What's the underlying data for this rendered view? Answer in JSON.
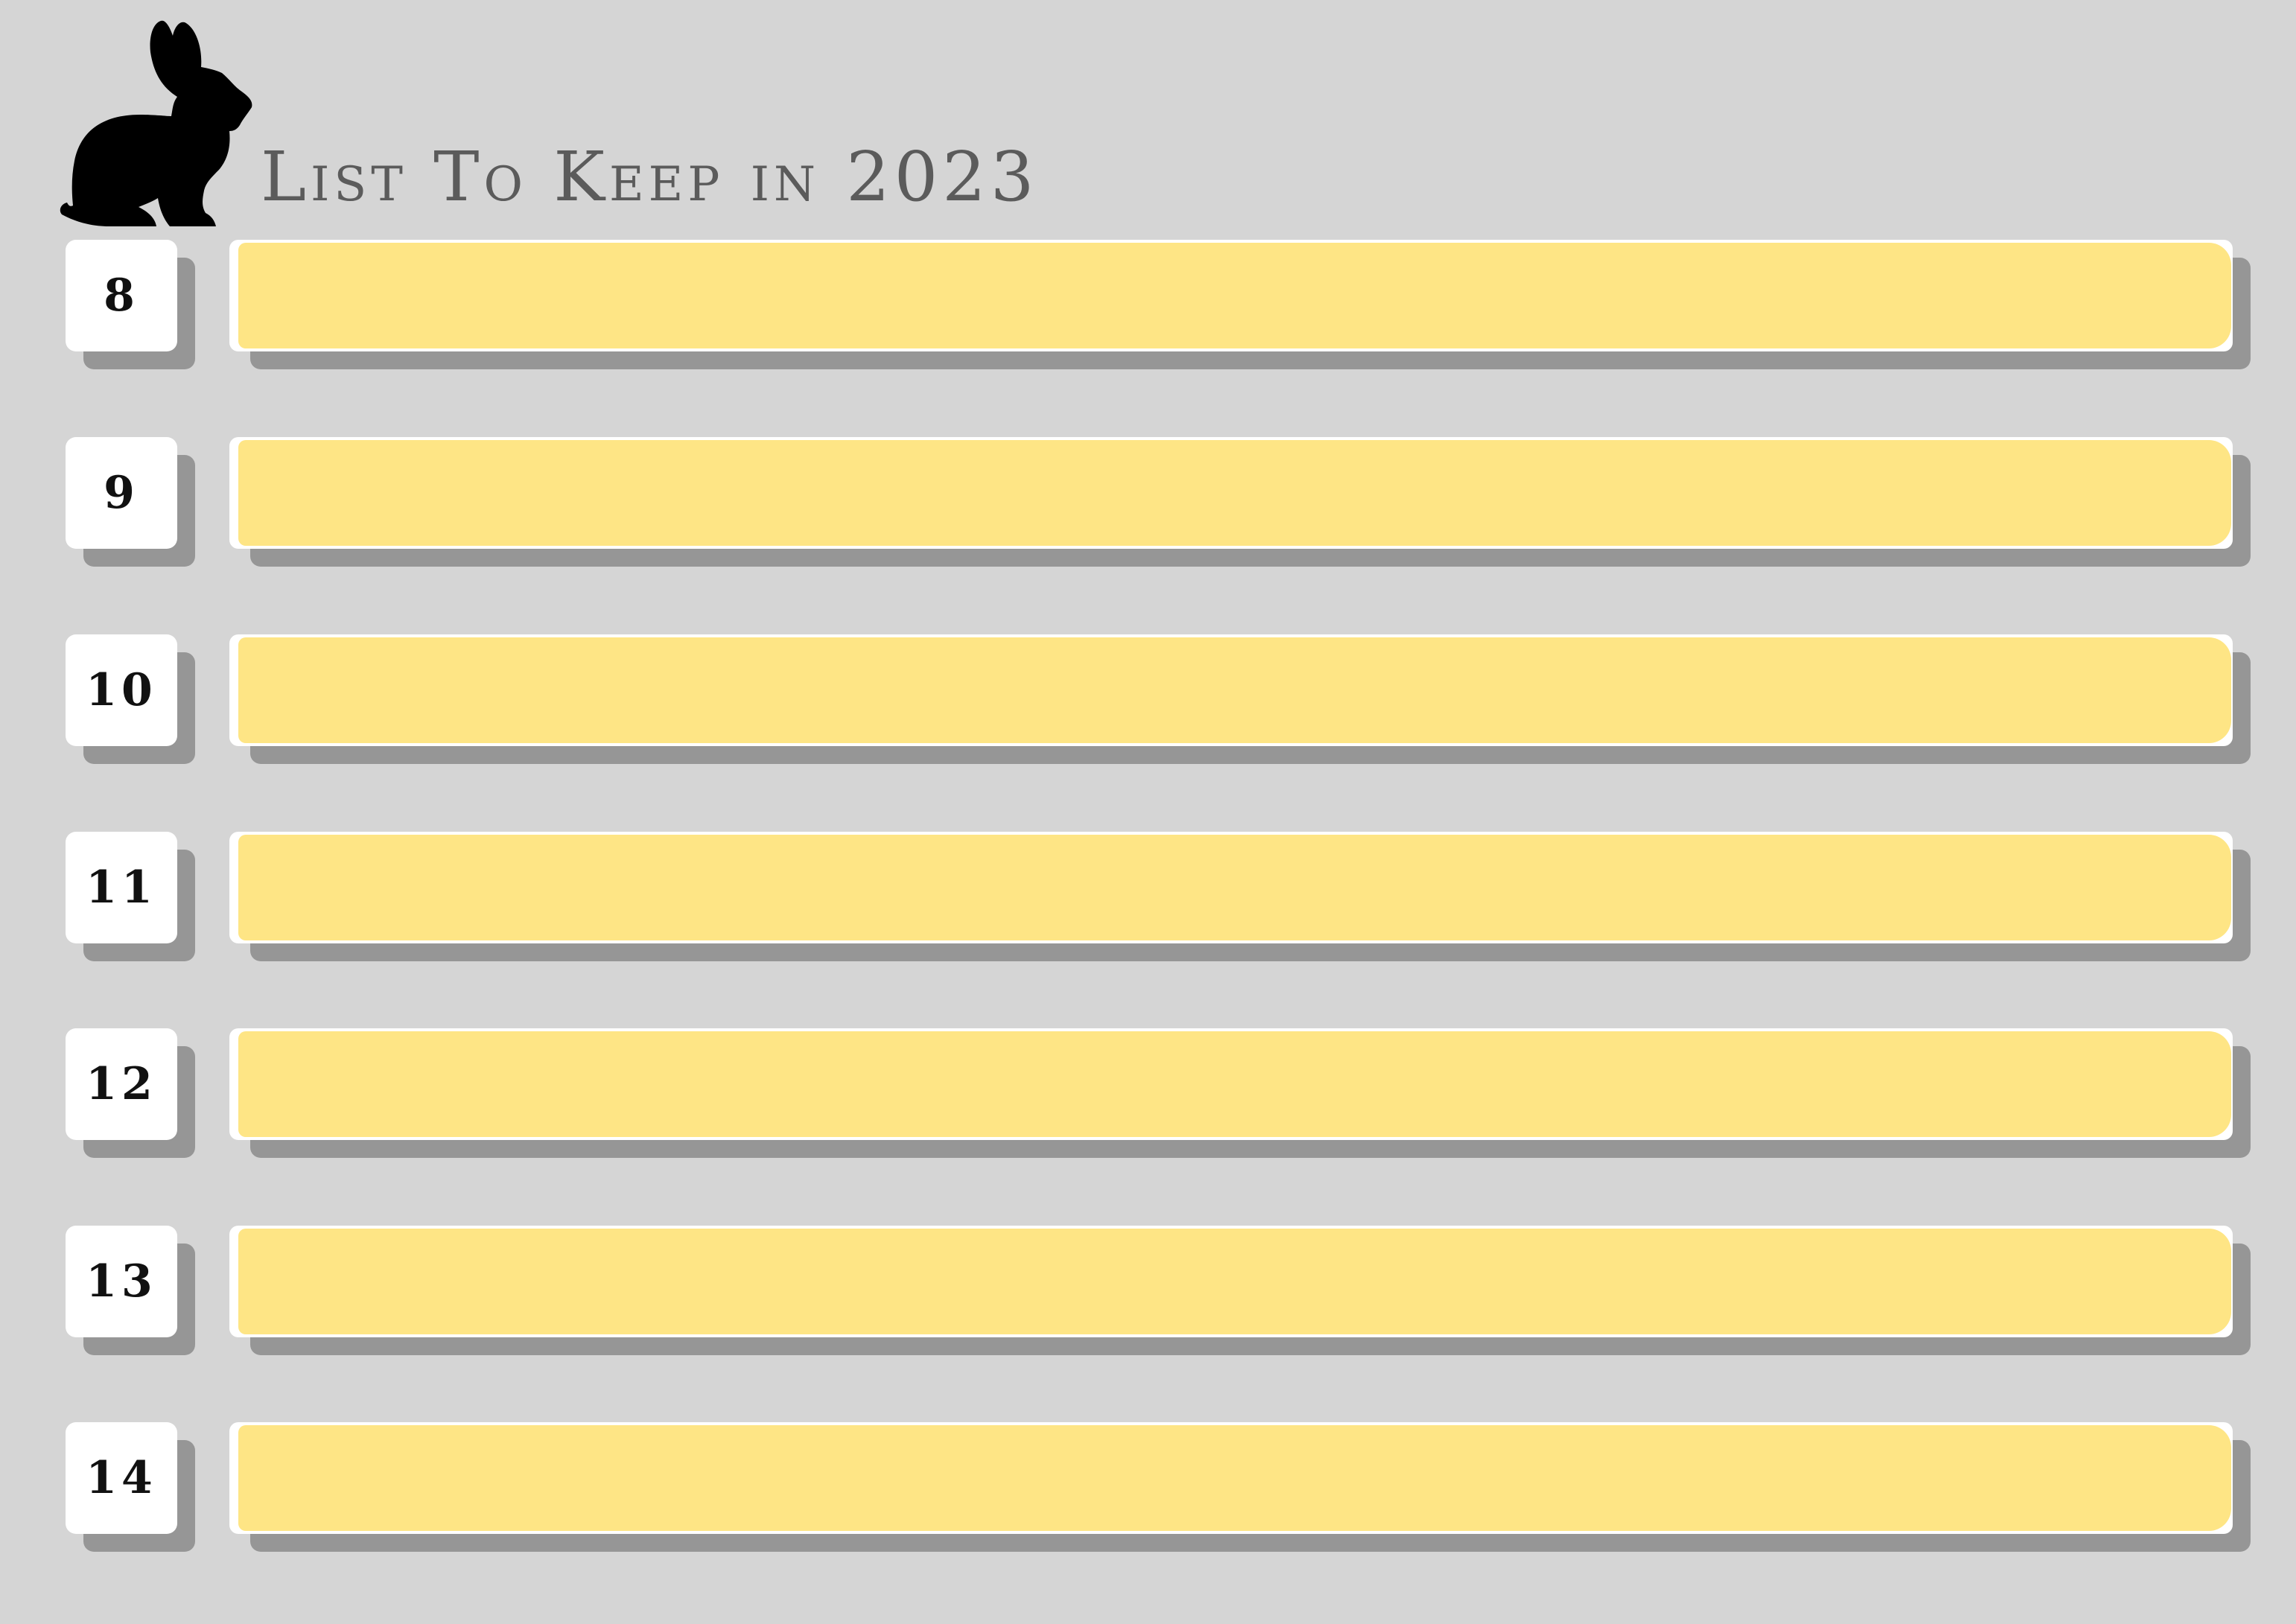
{
  "title": "List To Keep in 2023",
  "items": [
    {
      "number": "8",
      "text": ""
    },
    {
      "number": "9",
      "text": ""
    },
    {
      "number": "10",
      "text": ""
    },
    {
      "number": "11",
      "text": ""
    },
    {
      "number": "12",
      "text": ""
    },
    {
      "number": "13",
      "text": ""
    },
    {
      "number": "14",
      "text": ""
    }
  ],
  "decoration": {
    "icon": "rabbit-silhouette-icon"
  },
  "colors": {
    "background": "#d5d5d5",
    "bar_fill": "#fee585",
    "shadow": "#969696",
    "number_box": "#ffffff",
    "title_text": "#5b5b5b"
  }
}
